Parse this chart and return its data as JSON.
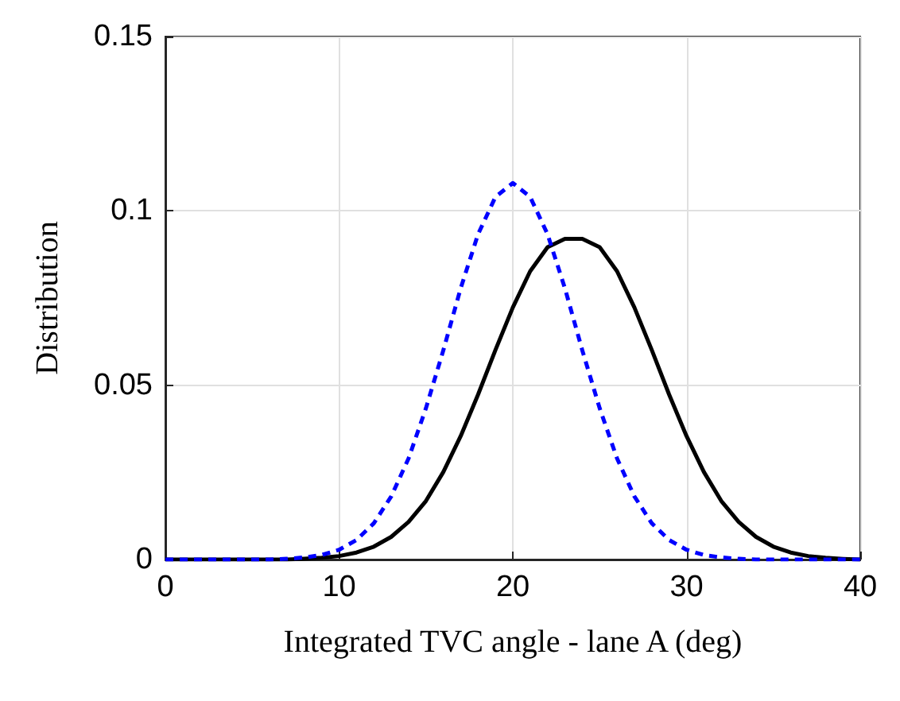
{
  "chart_data": {
    "type": "line",
    "xlabel": "Integrated TVC angle - lane A (deg)",
    "ylabel": "Distribution",
    "x": [
      0,
      1,
      2,
      3,
      4,
      5,
      6,
      7,
      8,
      9,
      10,
      11,
      12,
      13,
      14,
      15,
      16,
      17,
      18,
      19,
      20,
      21,
      22,
      23,
      24,
      25,
      26,
      27,
      28,
      29,
      30,
      31,
      32,
      33,
      34,
      35,
      36,
      37,
      38,
      39,
      40
    ],
    "series": [
      {
        "color": "#000000",
        "line_style": "solid",
        "values": [
          0,
          0,
          0,
          0,
          0,
          0,
          0,
          0,
          0.0002,
          0.0005,
          0.001,
          0.002,
          0.0037,
          0.0065,
          0.0108,
          0.0168,
          0.0251,
          0.0354,
          0.0473,
          0.0601,
          0.0723,
          0.0827,
          0.0896,
          0.092,
          0.092,
          0.0896,
          0.0827,
          0.0723,
          0.0601,
          0.0473,
          0.0354,
          0.0251,
          0.0168,
          0.0108,
          0.0065,
          0.0037,
          0.002,
          0.001,
          0.0005,
          0.0002,
          0
        ]
      },
      {
        "color": "#0000ff",
        "line_style": "dashed",
        "values": [
          0,
          0,
          0,
          0,
          0,
          0,
          0,
          0.0002,
          0.0006,
          0.0013,
          0.0028,
          0.0056,
          0.0104,
          0.0181,
          0.029,
          0.0434,
          0.06,
          0.0778,
          0.0933,
          0.104,
          0.108,
          0.104,
          0.0933,
          0.0778,
          0.06,
          0.0434,
          0.029,
          0.0181,
          0.0104,
          0.0056,
          0.0028,
          0.0013,
          0.0006,
          0.0002,
          0,
          0,
          0,
          0,
          0,
          0,
          0
        ]
      }
    ],
    "xlim": [
      0,
      40
    ],
    "xticks": [
      0,
      10,
      20,
      30,
      40
    ],
    "ylim": [
      0,
      0.15
    ],
    "yticks": [
      0,
      0.05,
      0.1,
      0.15
    ],
    "grid": true,
    "marker": "none"
  }
}
